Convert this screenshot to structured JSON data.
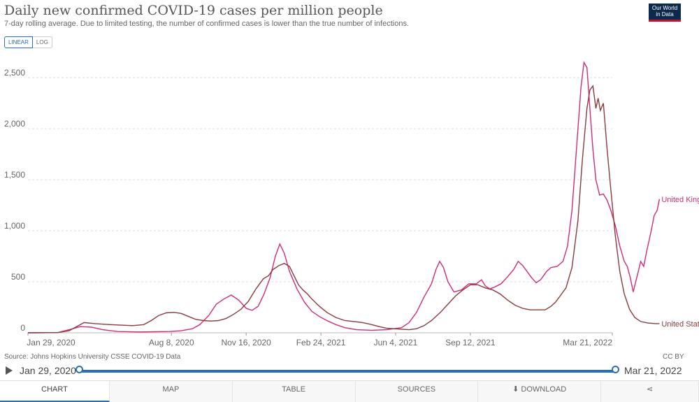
{
  "header": {
    "title": "Daily new confirmed COVID-19 cases per million people",
    "subtitle": "7-day rolling average. Due to limited testing, the number of confirmed cases is lower than the true number of infections.",
    "logo_line1": "Our World",
    "logo_line2": "in Data"
  },
  "scale_toggle": {
    "linear": "LINEAR",
    "log": "LOG",
    "selected": "LINEAR"
  },
  "footer": {
    "source": "Source: Johns Hopkins University CSSE COVID-19 Data",
    "license": "CC BY"
  },
  "timeline": {
    "start": "Jan 29, 2020",
    "end": "Mar 21, 2022"
  },
  "tabs": {
    "chart": "CHART",
    "map": "MAP",
    "table": "TABLE",
    "sources": "SOURCES",
    "download": "DOWNLOAD"
  },
  "colors": {
    "uk": "#d42a78",
    "us": "#8a3b3b",
    "accent": "#2a6ebb",
    "grid": "#dddddd"
  },
  "chart_data": {
    "type": "line",
    "x_tick_labels": [
      "Jan 29, 2020",
      "Aug 8, 2020",
      "Nov 16, 2020",
      "Feb 24, 2021",
      "Jun 4, 2021",
      "Sep 12, 2021",
      "Mar 21, 2022"
    ],
    "x_tick_days": [
      0,
      192,
      292,
      392,
      492,
      592,
      782
    ],
    "y_ticks": [
      0,
      500,
      1000,
      1500,
      2000,
      2500
    ],
    "y_tick_labels": [
      "0",
      "500",
      "1,000",
      "1,500",
      "2,000",
      "2,500"
    ],
    "ylim": [
      0,
      2700
    ],
    "xlim_days": [
      0,
      782
    ],
    "grid": true,
    "series": [
      {
        "name": "United Kingdom",
        "color": "#d42a78",
        "points": [
          [
            0,
            0
          ],
          [
            40,
            2
          ],
          [
            55,
            30
          ],
          [
            70,
            60
          ],
          [
            85,
            55
          ],
          [
            100,
            30
          ],
          [
            120,
            12
          ],
          [
            150,
            8
          ],
          [
            170,
            10
          ],
          [
            190,
            12
          ],
          [
            205,
            20
          ],
          [
            220,
            40
          ],
          [
            230,
            80
          ],
          [
            242,
            170
          ],
          [
            252,
            280
          ],
          [
            262,
            330
          ],
          [
            272,
            370
          ],
          [
            282,
            320
          ],
          [
            292,
            240
          ],
          [
            300,
            220
          ],
          [
            308,
            260
          ],
          [
            316,
            380
          ],
          [
            324,
            540
          ],
          [
            331,
            750
          ],
          [
            337,
            870
          ],
          [
            343,
            780
          ],
          [
            350,
            600
          ],
          [
            360,
            430
          ],
          [
            370,
            300
          ],
          [
            380,
            210
          ],
          [
            390,
            160
          ],
          [
            400,
            120
          ],
          [
            412,
            80
          ],
          [
            424,
            50
          ],
          [
            440,
            30
          ],
          [
            460,
            25
          ],
          [
            480,
            30
          ],
          [
            500,
            50
          ],
          [
            510,
            100
          ],
          [
            520,
            200
          ],
          [
            530,
            350
          ],
          [
            540,
            480
          ],
          [
            546,
            620
          ],
          [
            551,
            700
          ],
          [
            556,
            640
          ],
          [
            562,
            500
          ],
          [
            570,
            400
          ],
          [
            580,
            420
          ],
          [
            590,
            480
          ],
          [
            600,
            480
          ],
          [
            607,
            520
          ],
          [
            612,
            460
          ],
          [
            618,
            430
          ],
          [
            625,
            450
          ],
          [
            633,
            480
          ],
          [
            642,
            550
          ],
          [
            650,
            620
          ],
          [
            656,
            700
          ],
          [
            662,
            660
          ],
          [
            668,
            600
          ],
          [
            674,
            540
          ],
          [
            680,
            490
          ],
          [
            686,
            520
          ],
          [
            694,
            600
          ],
          [
            700,
            640
          ],
          [
            708,
            650
          ],
          [
            716,
            700
          ],
          [
            722,
            850
          ],
          [
            728,
            1200
          ],
          [
            734,
            1800
          ],
          [
            740,
            2400
          ],
          [
            744,
            2650
          ],
          [
            748,
            2600
          ],
          [
            752,
            2200
          ],
          [
            756,
            1800
          ],
          [
            760,
            1500
          ],
          [
            765,
            1350
          ],
          [
            770,
            1360
          ],
          [
            775,
            1300
          ],
          [
            780,
            1200
          ],
          [
            786,
            1050
          ],
          [
            792,
            850
          ],
          [
            798,
            700
          ],
          [
            802,
            650
          ],
          [
            806,
            540
          ],
          [
            810,
            400
          ],
          [
            815,
            550
          ],
          [
            820,
            700
          ],
          [
            824,
            650
          ],
          [
            828,
            800
          ],
          [
            834,
            1000
          ],
          [
            838,
            1150
          ],
          [
            842,
            1200
          ],
          [
            845,
            1310
          ]
        ]
      },
      {
        "name": "United States",
        "color": "#8a3b3b",
        "points": [
          [
            0,
            0
          ],
          [
            40,
            2
          ],
          [
            55,
            20
          ],
          [
            65,
            60
          ],
          [
            75,
            100
          ],
          [
            90,
            90
          ],
          [
            110,
            80
          ],
          [
            125,
            75
          ],
          [
            140,
            70
          ],
          [
            155,
            80
          ],
          [
            165,
            120
          ],
          [
            175,
            170
          ],
          [
            185,
            195
          ],
          [
            195,
            200
          ],
          [
            205,
            190
          ],
          [
            215,
            160
          ],
          [
            225,
            130
          ],
          [
            235,
            120
          ],
          [
            245,
            115
          ],
          [
            255,
            120
          ],
          [
            265,
            140
          ],
          [
            275,
            180
          ],
          [
            285,
            230
          ],
          [
            295,
            310
          ],
          [
            305,
            430
          ],
          [
            315,
            530
          ],
          [
            322,
            560
          ],
          [
            328,
            620
          ],
          [
            336,
            660
          ],
          [
            343,
            680
          ],
          [
            350,
            650
          ],
          [
            356,
            560
          ],
          [
            362,
            470
          ],
          [
            368,
            420
          ],
          [
            374,
            380
          ],
          [
            380,
            330
          ],
          [
            390,
            260
          ],
          [
            400,
            200
          ],
          [
            412,
            150
          ],
          [
            424,
            120
          ],
          [
            436,
            110
          ],
          [
            448,
            100
          ],
          [
            460,
            80
          ],
          [
            470,
            60
          ],
          [
            480,
            45
          ],
          [
            490,
            40
          ],
          [
            500,
            35
          ],
          [
            510,
            30
          ],
          [
            520,
            40
          ],
          [
            530,
            70
          ],
          [
            540,
            120
          ],
          [
            552,
            200
          ],
          [
            562,
            280
          ],
          [
            572,
            360
          ],
          [
            582,
            420
          ],
          [
            592,
            470
          ],
          [
            602,
            470
          ],
          [
            612,
            440
          ],
          [
            622,
            420
          ],
          [
            632,
            380
          ],
          [
            642,
            320
          ],
          [
            652,
            270
          ],
          [
            662,
            240
          ],
          [
            672,
            225
          ],
          [
            682,
            225
          ],
          [
            692,
            225
          ],
          [
            700,
            260
          ],
          [
            706,
            300
          ],
          [
            712,
            360
          ],
          [
            720,
            440
          ],
          [
            728,
            640
          ],
          [
            736,
            1100
          ],
          [
            742,
            1700
          ],
          [
            748,
            2200
          ],
          [
            752,
            2380
          ],
          [
            756,
            2420
          ],
          [
            760,
            2200
          ],
          [
            763,
            2300
          ],
          [
            766,
            2180
          ],
          [
            770,
            2250
          ],
          [
            775,
            1800
          ],
          [
            780,
            1400
          ],
          [
            786,
            950
          ],
          [
            792,
            600
          ],
          [
            798,
            380
          ],
          [
            805,
            230
          ],
          [
            812,
            150
          ],
          [
            820,
            110
          ],
          [
            830,
            95
          ],
          [
            840,
            90
          ],
          [
            845,
            90
          ]
        ]
      }
    ],
    "series_labels": [
      "United Kingdom",
      "United States"
    ]
  }
}
